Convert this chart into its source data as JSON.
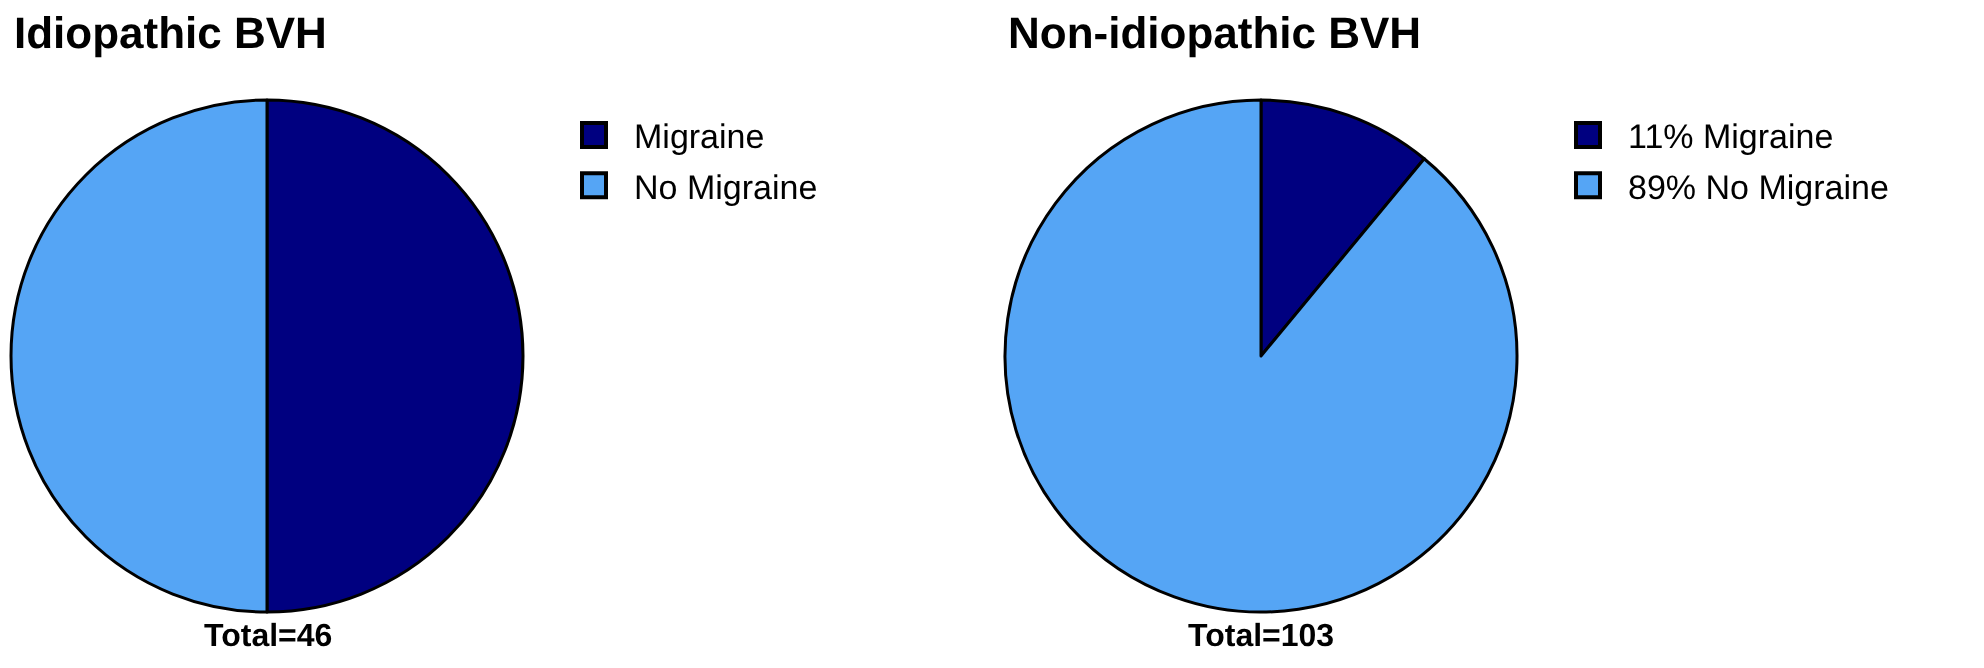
{
  "chart_data": [
    {
      "type": "pie",
      "title": "Idiopathic BVH",
      "categories": [
        "Migraine",
        "No Migraine"
      ],
      "values": [
        50,
        50
      ],
      "colors": [
        "#000080",
        "#55a5f5"
      ],
      "legend": "right",
      "annotations": [
        "Total=46"
      ]
    },
    {
      "type": "pie",
      "title": "Non-idiopathic BVH",
      "categories": [
        "11% Migraine",
        "89% No Migraine"
      ],
      "values": [
        11,
        89
      ],
      "colors": [
        "#000080",
        "#55a5f5"
      ],
      "legend": "right",
      "annotations": [
        "Total=103"
      ]
    }
  ]
}
